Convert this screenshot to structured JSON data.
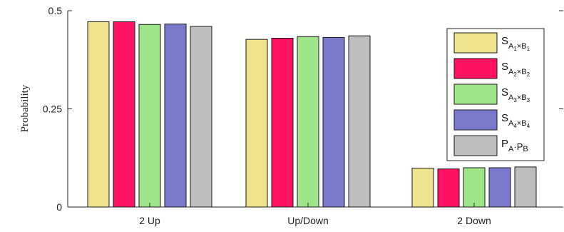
{
  "chart_data": {
    "type": "bar",
    "title": "",
    "xlabel": "",
    "ylabel": "Probability",
    "ylim": [
      0,
      0.5
    ],
    "yticks": [
      {
        "value": 0,
        "label": "0"
      },
      {
        "value": 0.25,
        "label": "0.25"
      },
      {
        "value": 0.5,
        "label": "0.5"
      }
    ],
    "categories": [
      "2 Up",
      "Up/Down",
      "2 Down"
    ],
    "grid": false,
    "legend_position": "right",
    "series": [
      {
        "name": "S_{A1×B1}",
        "color": "#EFE38E",
        "values": [
          0.472,
          0.427,
          0.099
        ]
      },
      {
        "name": "S_{A2×B2}",
        "color": "#FF1263",
        "values": [
          0.472,
          0.43,
          0.097
        ]
      },
      {
        "name": "S_{A3×B3}",
        "color": "#9EE58A",
        "values": [
          0.465,
          0.434,
          0.1
        ]
      },
      {
        "name": "S_{A4×B4}",
        "color": "#7A7ACC",
        "values": [
          0.466,
          0.432,
          0.1
        ]
      },
      {
        "name": "P_A·P_B",
        "color": "#BDBDBD",
        "values": [
          0.46,
          0.436,
          0.102
        ]
      }
    ],
    "legend_labels": [
      {
        "base": "S",
        "s1": "A",
        "ss1": "1",
        "op": "×",
        "s2": "B",
        "ss2": "1"
      },
      {
        "base": "S",
        "s1": "A",
        "ss1": "2",
        "op": "×",
        "s2": "B",
        "ss2": "2"
      },
      {
        "base": "S",
        "s1": "A",
        "ss1": "3",
        "op": "×",
        "s2": "B",
        "ss2": "3"
      },
      {
        "base": "S",
        "s1": "A",
        "ss1": "4",
        "op": "×",
        "s2": "B",
        "ss2": "4"
      },
      {
        "base": "P",
        "s1": "A",
        "ss1": "",
        "op": "·P",
        "s2": "B",
        "ss2": ""
      }
    ]
  }
}
